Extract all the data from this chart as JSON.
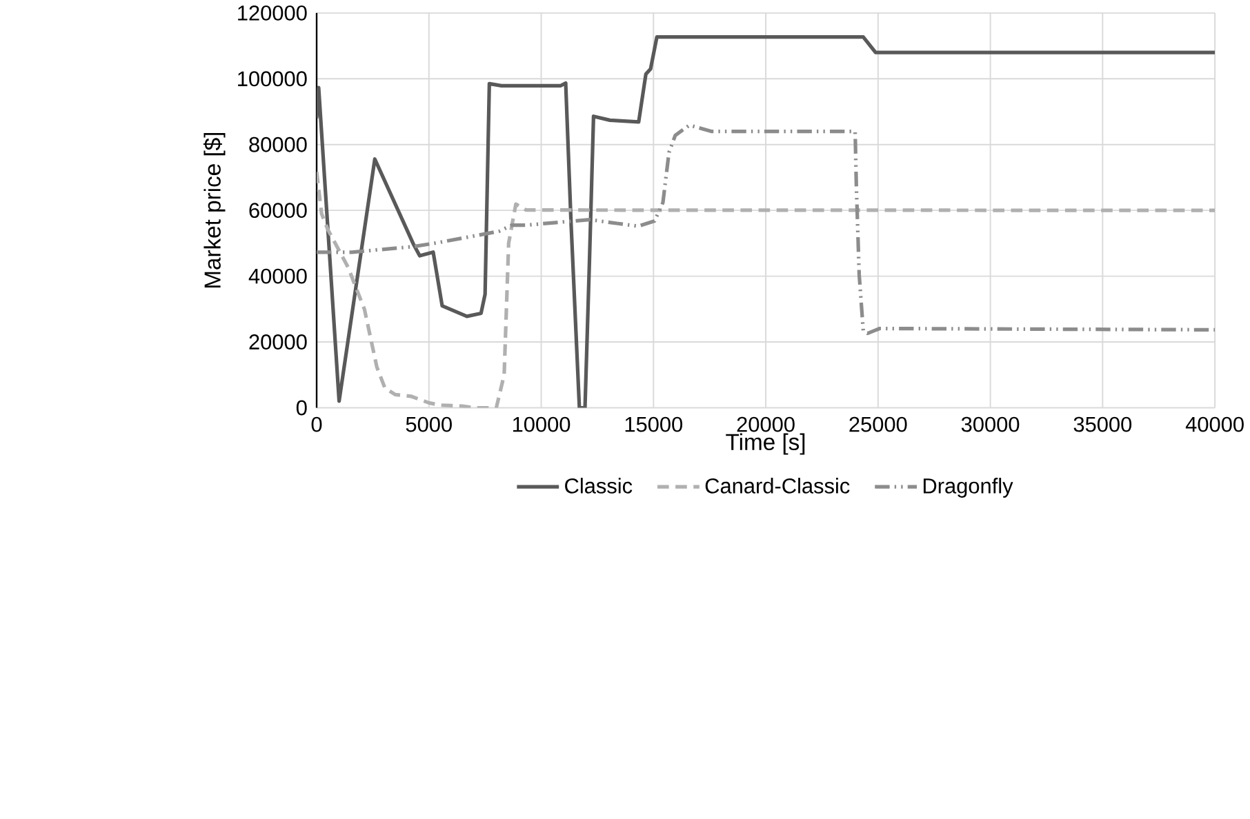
{
  "chart_data": {
    "type": "line",
    "xlabel": "Time [s]",
    "ylabel": "Market price [$]",
    "xlim": [
      0,
      40000
    ],
    "ylim": [
      0,
      120000
    ],
    "xticks": [
      0,
      5000,
      10000,
      15000,
      20000,
      25000,
      30000,
      35000,
      40000
    ],
    "yticks": [
      0,
      20000,
      40000,
      60000,
      80000,
      100000,
      120000
    ],
    "grid": true,
    "legend": "bottom",
    "marker": "none",
    "series": [
      {
        "name": "Classic",
        "color": "#595959",
        "line_style": "solid",
        "x": [
          0,
          90,
          1000,
          2590,
          4320,
          4590,
          5190,
          5590,
          6690,
          7320,
          7500,
          7690,
          8230,
          10870,
          11090,
          11330,
          11700,
          11950,
          12150,
          12330,
          13060,
          14340,
          14660,
          14870,
          15150,
          24340,
          24890,
          40000
        ],
        "values": [
          88000,
          97300,
          2000,
          75600,
          49600,
          46200,
          47300,
          31000,
          27800,
          28700,
          34500,
          98500,
          97900,
          97900,
          98700,
          56000,
          0,
          0,
          45000,
          88600,
          87400,
          86900,
          101400,
          103000,
          112700,
          112700,
          108000,
          108000
        ]
      },
      {
        "name": "Canard-Classic",
        "color": "#b0b0b0",
        "line_style": "dashed",
        "x": [
          0,
          220,
          490,
          1400,
          2130,
          2680,
          3040,
          3500,
          4200,
          5000,
          5500,
          6500,
          7000,
          8000,
          8350,
          8550,
          8870,
          9330,
          40000
        ],
        "values": [
          71700,
          59000,
          54300,
          42700,
          29900,
          12400,
          6000,
          4000,
          3500,
          1500,
          800,
          500,
          0,
          0,
          10000,
          50000,
          61900,
          60100,
          60000
        ]
      },
      {
        "name": "Dragonfly",
        "color": "#8c8c8c",
        "line_style": "dashdotdot",
        "x": [
          0,
          1580,
          4320,
          5410,
          7230,
          8140,
          8690,
          9330,
          12150,
          13420,
          14330,
          15050,
          15420,
          15690,
          15970,
          16600,
          17600,
          23980,
          24030,
          24160,
          24340,
          24530,
          25070,
          40000
        ],
        "values": [
          47300,
          47300,
          49000,
          50200,
          52500,
          53700,
          55500,
          55500,
          57200,
          56000,
          55200,
          56800,
          62400,
          77600,
          82800,
          85900,
          84000,
          84000,
          68300,
          40400,
          23500,
          22600,
          24100,
          23700
        ]
      }
    ]
  }
}
